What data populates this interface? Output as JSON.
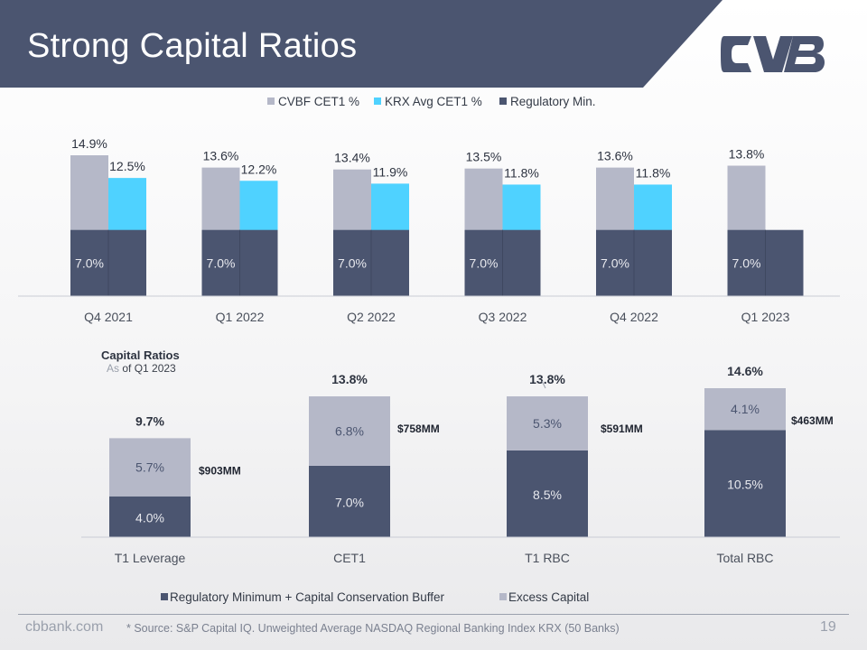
{
  "slide": {
    "title": "Strong Capital Ratios",
    "footer_site": "cbbank.com",
    "footer_source": "* Source: S&P Capital IQ. Unweighted Average NASDAQ Regional Banking Index KRX (50 Banks)",
    "page_number": "19",
    "logo_icon": "cvb-logo-icon"
  },
  "colors": {
    "header": "#4b5570",
    "cvbf": "#b5b8c8",
    "krx": "#4fd2ff",
    "regulatory": "#4b5570",
    "excess": "#b5b8c8",
    "logo": "#4b5570"
  },
  "capital_panel": {
    "title": "Capital Ratios",
    "subtitle_as": "As",
    "subtitle_rest": " of Q1 2023"
  },
  "chart_data": [
    {
      "type": "bar",
      "categories": [
        "Q4 2021",
        "Q1 2022",
        "Q2 2022",
        "Q3 2022",
        "Q4 2022",
        "Q1 2023"
      ],
      "series": [
        {
          "name": "CVBF CET1 %",
          "values": [
            14.9,
            13.6,
            13.4,
            13.5,
            13.6,
            13.8
          ],
          "labels": [
            "14.9%",
            "13.6%",
            "13.4%",
            "13.5%",
            "13.6%",
            "13.8%"
          ]
        },
        {
          "name": "KRX Avg CET1 %",
          "values": [
            12.5,
            12.2,
            11.9,
            11.8,
            11.8,
            null
          ],
          "labels": [
            "12.5%",
            "12.2%",
            "11.9%",
            "11.8%",
            "11.8%",
            ""
          ]
        },
        {
          "name": "Regulatory Min.",
          "values": [
            7.0,
            7.0,
            7.0,
            7.0,
            7.0,
            7.0
          ],
          "labels": [
            "7.0%",
            "7.0%",
            "7.0%",
            "7.0%",
            "7.0%",
            "7.0%"
          ]
        }
      ],
      "ylim": [
        0,
        16
      ],
      "legend": "top",
      "grid": false
    },
    {
      "type": "bar",
      "stacked": true,
      "categories": [
        "T1 Leverage",
        "CET1",
        "T1 RBC",
        "Total RBC"
      ],
      "series": [
        {
          "name": "Regulatory Minimum +  Capital Conservation Buffer",
          "values": [
            4.0,
            7.0,
            8.5,
            10.5
          ],
          "labels": [
            "4.0%",
            "7.0%",
            "8.5%",
            "10.5%"
          ]
        },
        {
          "name": "Excess Capital",
          "values": [
            5.7,
            6.8,
            5.3,
            4.1
          ],
          "labels": [
            "5.7%",
            "6.8%",
            "5.3%",
            "4.1%"
          ]
        }
      ],
      "totals": [
        "9.7%",
        "13.8%",
        "13.8%",
        "14.6%"
      ],
      "excess_amounts": [
        "$903MM",
        "$758MM",
        "$591MM",
        "$463MM"
      ],
      "ylim": [
        0,
        15
      ],
      "legend": "bottom",
      "grid": false
    }
  ]
}
